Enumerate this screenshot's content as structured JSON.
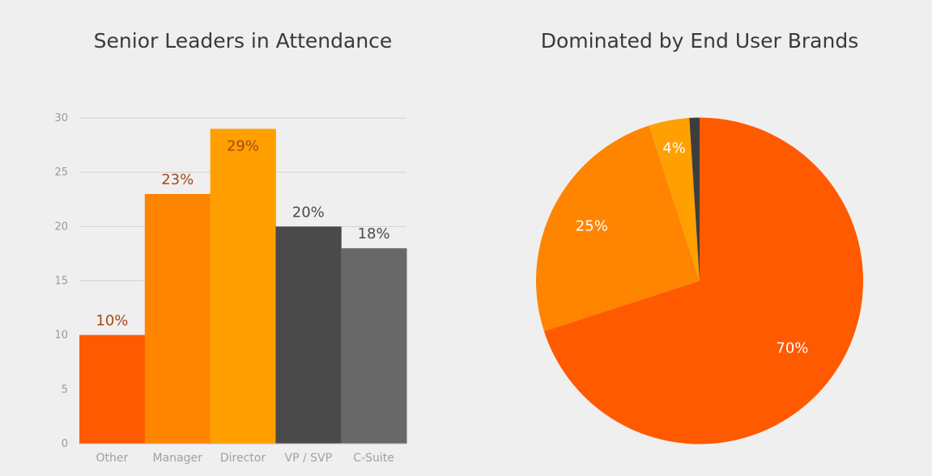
{
  "chart_data": [
    {
      "type": "bar",
      "title": "Senior Leaders in Attendance",
      "categories": [
        "Other",
        "Manager",
        "Director",
        "VP / SVP",
        "C-Suite"
      ],
      "values": [
        10,
        23,
        29,
        20,
        18
      ],
      "data_labels": [
        "10%",
        "23%",
        "29%",
        "20%",
        "18%"
      ],
      "colors": [
        "#ff5a00",
        "#ff8400",
        "#ffa000",
        "#4a4a4a",
        "#686868"
      ],
      "label_colors": [
        "#a8461a",
        "#a8461a",
        "#a8461a",
        "#4a4a4a",
        "#4a4a4a"
      ],
      "ylim": [
        0,
        30
      ],
      "yticks": [
        "0",
        "5",
        "10",
        "15",
        "20",
        "25",
        "30"
      ],
      "grid": true,
      "legend": false
    },
    {
      "type": "pie",
      "title": "Dominated by End User Brands",
      "slices": [
        {
          "value": 70,
          "label": "70%",
          "color": "#ff5a00"
        },
        {
          "value": 25,
          "label": "25%",
          "color": "#ff8400"
        },
        {
          "value": 4,
          "label": "4%",
          "color": "#ffa000"
        },
        {
          "value": 1,
          "label": "",
          "color": "#3d3d3d"
        }
      ],
      "label_color": "#ffffff",
      "legend": false
    }
  ]
}
